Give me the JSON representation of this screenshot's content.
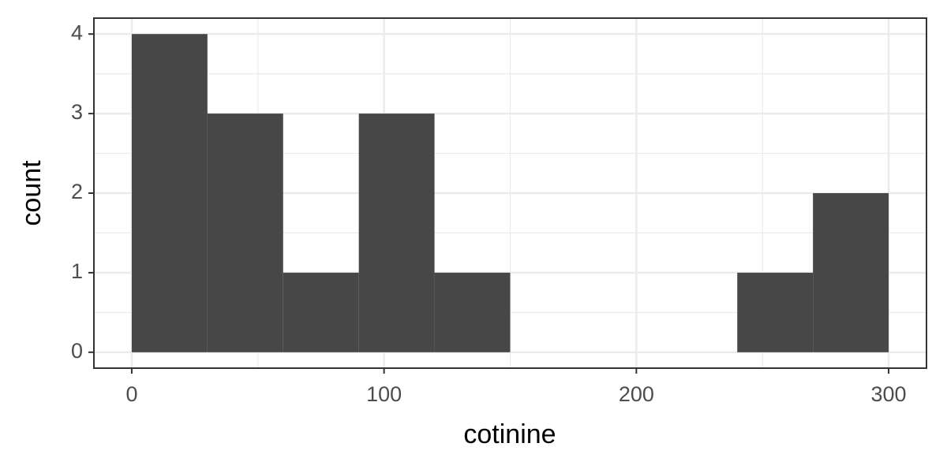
{
  "chart_data": {
    "type": "histogram",
    "x_label": "cotinine",
    "y_label": "count",
    "bins": [
      0,
      30,
      60,
      90,
      120,
      150,
      180,
      210,
      240,
      270,
      300
    ],
    "values": [
      4,
      3,
      1,
      3,
      1,
      0,
      0,
      0,
      1,
      2
    ],
    "color": "#474747",
    "xlim": [
      -15,
      315
    ],
    "ylim": [
      -0.2,
      4.2
    ],
    "xticks": [
      0,
      100,
      200,
      300
    ],
    "yticks": [
      0,
      1,
      2,
      3,
      4
    ],
    "grid": true
  }
}
